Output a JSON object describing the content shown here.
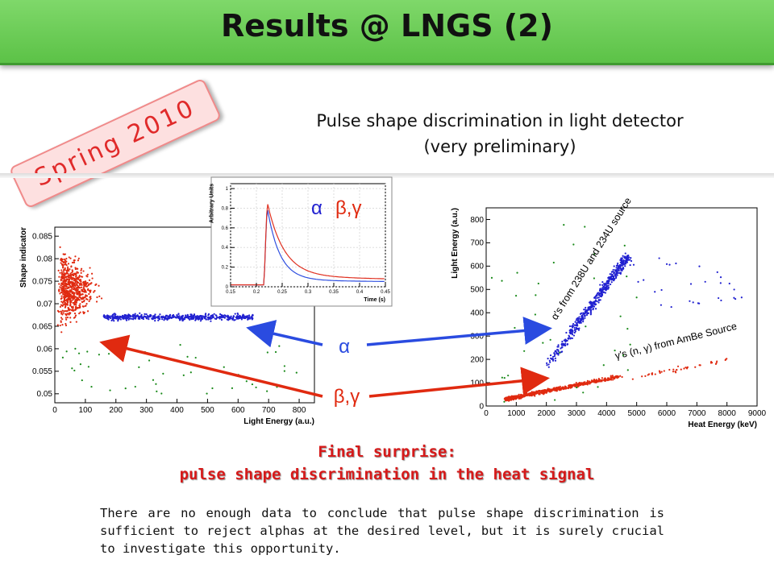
{
  "slide": {
    "title": "Results @ LNGS (2)",
    "badge": "Spring 2010",
    "subtitle_line1": "Pulse shape discrimination in light detector",
    "subtitle_line2": "(very preliminary)",
    "final_line1": "Final surprise:",
    "final_line2": "pulse shape discrimination in the heat signal",
    "body": "There are no enough data to conclude that pulse shape discrimination is sufficient to reject alphas at the desired level, but it is surely crucial to investigate this opportunity.",
    "arrow_alpha_label": "α",
    "arrow_beta_label": "β,γ"
  },
  "colors": {
    "alpha": "#2020d0",
    "beta": "#e02a10",
    "gamma_other": "#1a8a1a",
    "title_bar": "#5cc247"
  },
  "chart_data": [
    {
      "type": "scatter",
      "xlabel": "Light Energy (a.u.)",
      "ylabel": "Shape indicator",
      "xlim": [
        0,
        850
      ],
      "ylim": [
        0.048,
        0.087
      ],
      "xticks": [
        "0",
        "100",
        "200",
        "300",
        "400",
        "500",
        "600",
        "700",
        "800"
      ],
      "yticks": [
        "0.05",
        "0.055",
        "0.06",
        "0.065",
        "0.07",
        "0.075",
        "0.08",
        "0.085"
      ],
      "series": [
        {
          "color": "red",
          "clusters": [
            {
              "x": [
                10,
                180
              ],
              "y": [
                0.067,
                0.08
              ],
              "center": [
                60,
                0.073
              ]
            }
          ]
        },
        {
          "color": "blue",
          "clusters": [
            {
              "x": [
                150,
                650
              ],
              "y": [
                0.0655,
                0.0685
              ],
              "center": [
                450,
                0.067
              ]
            }
          ]
        },
        {
          "color": "green",
          "clusters": [
            {
              "x": [
                0,
                850
              ],
              "y": [
                0.049,
                0.062
              ]
            }
          ]
        }
      ]
    },
    {
      "type": "line",
      "xlabel": "Time (s)",
      "ylabel": "Arbitrary Units",
      "xlim": [
        0.15,
        0.45
      ],
      "ylim": [
        0,
        1.05
      ],
      "xticks": [
        "0.15",
        "0.2",
        "0.25",
        "0.3",
        "0.35",
        "0.4",
        "0.45"
      ],
      "yticks": [
        "0",
        "0.2",
        "0.4",
        "0.6",
        "0.8",
        "1"
      ],
      "legend": [
        "α",
        "β,γ"
      ],
      "series": [
        {
          "color": "red",
          "onset": 0.215,
          "peak": 1.0,
          "tail": 0.09
        },
        {
          "color": "blue",
          "onset": 0.215,
          "peak": 1.0,
          "tail": 0.05
        }
      ]
    },
    {
      "type": "scatter",
      "xlabel": "Heat Energy (keV)",
      "ylabel": "Light Energy (a.u.)",
      "xlim": [
        0,
        9000
      ],
      "ylim": [
        0,
        850
      ],
      "xticks": [
        "0",
        "1000",
        "2000",
        "3000",
        "4000",
        "5000",
        "6000",
        "7000",
        "8000",
        "9000"
      ],
      "yticks": [
        "0",
        "100",
        "200",
        "300",
        "400",
        "500",
        "600",
        "700",
        "800"
      ],
      "annotations": [
        "α's from 238U and 234U source",
        "γ's (n, γ) from AmBe Source"
      ],
      "series": [
        {
          "color": "blue",
          "band": {
            "x": [
              2000,
              4700
            ],
            "y": [
              170,
              640
            ]
          }
        },
        {
          "color": "red",
          "band": {
            "x": [
              700,
              8000
            ],
            "y": [
              30,
              200
            ]
          }
        },
        {
          "color": "green",
          "scatter": true
        }
      ]
    }
  ]
}
